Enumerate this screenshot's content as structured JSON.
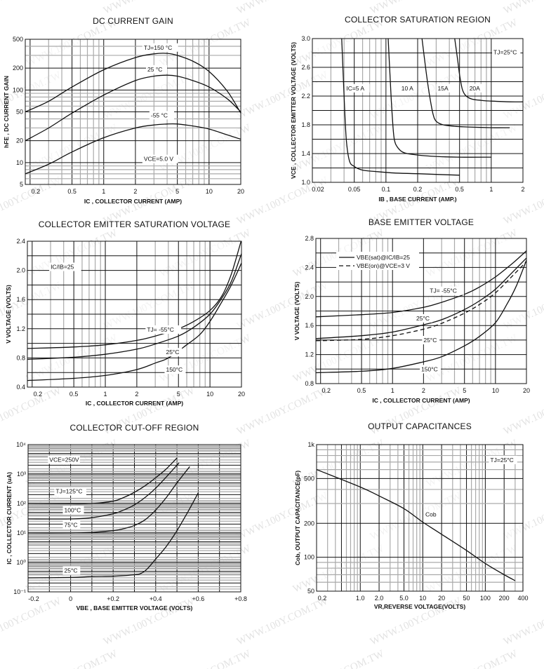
{
  "watermark": "WWW.100Y.COM.TW",
  "chart_data": [
    {
      "id": "dc-current-gain",
      "type": "line",
      "title": "DC CURRENT GAIN",
      "xlabel": "IC , COLLECTOR CURRENT (AMP)",
      "ylabel": "hFE , DC CURRENT GAIN",
      "xscale": "log",
      "yscale": "log",
      "xlim": [
        0.18,
        20
      ],
      "ylim": [
        5,
        500
      ],
      "xticks": [
        {
          "v": 0.2,
          "label": "0.2"
        },
        {
          "v": 0.5,
          "label": "0.5"
        },
        {
          "v": 1,
          "label": "1"
        },
        {
          "v": 2,
          "label": "2"
        },
        {
          "v": 5,
          "label": "5"
        },
        {
          "v": 10,
          "label": "10"
        },
        {
          "v": 20,
          "label": "20"
        }
      ],
      "yticks": [
        {
          "v": 5,
          "label": "5"
        },
        {
          "v": 10,
          "label": "10"
        },
        {
          "v": 20,
          "label": "20"
        },
        {
          "v": 50,
          "label": "50"
        },
        {
          "v": 100,
          "label": "100"
        },
        {
          "v": 200,
          "label": "200"
        },
        {
          "v": 500,
          "label": "500"
        }
      ],
      "grid": true,
      "series": [
        {
          "name": "TJ=150 °C",
          "x": [
            0.18,
            0.3,
            0.5,
            1,
            2,
            3,
            4,
            5,
            7,
            10,
            15,
            20
          ],
          "y": [
            50,
            70,
            110,
            190,
            280,
            315,
            320,
            300,
            250,
            180,
            95,
            48
          ]
        },
        {
          "name": "25 °C",
          "x": [
            0.18,
            0.3,
            0.5,
            1,
            2,
            3,
            4,
            5,
            7,
            10,
            15,
            20
          ],
          "y": [
            20,
            30,
            48,
            85,
            135,
            155,
            160,
            155,
            135,
            110,
            75,
            50
          ]
        },
        {
          "name": "-55 °C",
          "x": [
            0.18,
            0.3,
            0.5,
            1,
            2,
            3,
            4,
            5,
            7,
            10,
            15,
            20
          ],
          "y": [
            7,
            9.5,
            14,
            22,
            30,
            33,
            34,
            34,
            32,
            29,
            24,
            21
          ]
        }
      ],
      "annotations": [
        {
          "text": "TJ=150 °C",
          "x": 2.4,
          "y": 360
        },
        {
          "text": "25 °C",
          "x": 2.6,
          "y": 180
        },
        {
          "text": "-55 °C",
          "x": 2.8,
          "y": 42
        },
        {
          "text": "VCE=5.0 V",
          "x": 2.4,
          "y": 10.5
        }
      ]
    },
    {
      "id": "collector-saturation-region",
      "type": "line",
      "title": "COLLECTOR SATURATION REGION",
      "xlabel": "IB , BASE CURRENT (AMP.)",
      "ylabel": "VCE , COLLECTOR EMITTER VOLTAGE (VOLTS)",
      "xscale": "log",
      "yscale": "linear",
      "xlim": [
        0.02,
        2
      ],
      "ylim": [
        1.0,
        3.0
      ],
      "xticks": [
        {
          "v": 0.02,
          "label": "0.02"
        },
        {
          "v": 0.05,
          "label": "0.05"
        },
        {
          "v": 0.1,
          "label": "0.1"
        },
        {
          "v": 0.2,
          "label": "0.2"
        },
        {
          "v": 0.5,
          "label": "0.5"
        },
        {
          "v": 1,
          "label": "1"
        },
        {
          "v": 2,
          "label": "2"
        }
      ],
      "yticks": [
        {
          "v": 1.0,
          "label": "1.0"
        },
        {
          "v": 1.4,
          "label": "1.4"
        },
        {
          "v": 1.8,
          "label": "1.8"
        },
        {
          "v": 2.2,
          "label": "2.2"
        },
        {
          "v": 2.6,
          "label": "2.6"
        },
        {
          "v": 3.0,
          "label": "3.0"
        }
      ],
      "grid": true,
      "series": [
        {
          "name": "IC=5 A",
          "x": [
            0.038,
            0.04,
            0.042,
            0.045,
            0.05,
            0.06,
            0.08,
            0.12,
            0.2,
            0.3,
            0.5
          ],
          "y": [
            3.0,
            2.2,
            1.6,
            1.3,
            1.22,
            1.17,
            1.15,
            1.13,
            1.12,
            1.11,
            1.1
          ]
        },
        {
          "name": "10 A",
          "x": [
            0.105,
            0.11,
            0.115,
            0.12,
            0.13,
            0.15,
            0.2,
            0.3,
            0.5,
            1.0
          ],
          "y": [
            3.0,
            2.4,
            1.9,
            1.6,
            1.48,
            1.41,
            1.38,
            1.36,
            1.35,
            1.35
          ]
        },
        {
          "name": "15A",
          "x": [
            0.22,
            0.24,
            0.26,
            0.28,
            0.3,
            0.35,
            0.45,
            0.6,
            1.0,
            1.5
          ],
          "y": [
            3.0,
            2.55,
            2.2,
            1.95,
            1.85,
            1.8,
            1.78,
            1.77,
            1.76,
            1.76
          ]
        },
        {
          "name": "20A",
          "x": [
            0.45,
            0.48,
            0.5,
            0.53,
            0.57,
            0.65,
            0.8,
            1.0,
            1.5,
            2.0
          ],
          "y": [
            3.0,
            2.7,
            2.5,
            2.3,
            2.21,
            2.16,
            2.14,
            2.13,
            2.12,
            2.12
          ]
        }
      ],
      "annotations": [
        {
          "text": "IC=5 A",
          "x": 0.042,
          "y": 2.28
        },
        {
          "text": "10 A",
          "x": 0.14,
          "y": 2.28
        },
        {
          "text": "15A",
          "x": 0.31,
          "y": 2.28
        },
        {
          "text": "20A",
          "x": 0.62,
          "y": 2.28
        },
        {
          "text": "TJ=25°C",
          "x": 1.05,
          "y": 2.78
        }
      ]
    },
    {
      "id": "collector-emitter-saturation-voltage",
      "type": "line",
      "title": "COLLECTOR EMITTER SATURATION VOLTAGE",
      "xlabel": "IC , COLLECTOR CURRENT (AMP)",
      "ylabel": "V VOLTAGE (VOLTS)",
      "xscale": "log",
      "yscale": "linear",
      "xlim": [
        0.18,
        20
      ],
      "ylim": [
        0.4,
        2.4
      ],
      "xticks": [
        {
          "v": 0.2,
          "label": "0.2"
        },
        {
          "v": 0.5,
          "label": "0.5"
        },
        {
          "v": 1,
          "label": "1"
        },
        {
          "v": 2,
          "label": "2"
        },
        {
          "v": 5,
          "label": "5"
        },
        {
          "v": 10,
          "label": "10"
        },
        {
          "v": 20,
          "label": "20"
        }
      ],
      "yticks": [
        {
          "v": 0.4,
          "label": "0.4"
        },
        {
          "v": 0.8,
          "label": "0.8"
        },
        {
          "v": 1.2,
          "label": "1.2"
        },
        {
          "v": 1.6,
          "label": "1.6"
        },
        {
          "v": 2.0,
          "label": "2.0"
        },
        {
          "v": 2.4,
          "label": "2.4"
        }
      ],
      "grid": true,
      "series": [
        {
          "name": "TJ= -55°C",
          "x": [
            0.18,
            0.5,
            1,
            2,
            3,
            5,
            7,
            10,
            13,
            16,
            20
          ],
          "y": [
            0.93,
            0.95,
            0.98,
            1.04,
            1.1,
            1.2,
            1.3,
            1.45,
            1.65,
            1.95,
            2.42
          ]
        },
        {
          "name": "25°C",
          "x": [
            0.18,
            0.5,
            1,
            2,
            3,
            5,
            7,
            10,
            13,
            16,
            20
          ],
          "y": [
            0.78,
            0.81,
            0.85,
            0.92,
            0.99,
            1.1,
            1.22,
            1.4,
            1.62,
            1.85,
            2.23
          ]
        },
        {
          "name": "150°C",
          "x": [
            0.18,
            0.5,
            1,
            2,
            3,
            4,
            6,
            8,
            10,
            13,
            16,
            20
          ],
          "y": [
            0.49,
            0.52,
            0.56,
            0.64,
            0.73,
            0.8,
            0.98,
            1.12,
            1.3,
            1.57,
            1.8,
            2.1
          ]
        }
      ],
      "annotations": [
        {
          "text": "IC/IB=25",
          "x": 0.3,
          "y": 2.02
        },
        {
          "text": "TJ= -55°C",
          "x": 2.5,
          "y": 1.16
        },
        {
          "text": "25°C",
          "x": 3.8,
          "y": 0.85
        },
        {
          "text": "150°C",
          "x": 3.8,
          "y": 0.61
        }
      ]
    },
    {
      "id": "base-emitter-voltage",
      "type": "line",
      "title": "BASE EMITTER VOLTAGE",
      "xlabel": "IC , COLLECTOR CURRENT (AMP)",
      "ylabel": "V VOLTAGE (VOLTS)",
      "xscale": "log",
      "yscale": "linear",
      "xlim": [
        0.18,
        20
      ],
      "ylim": [
        0.8,
        2.8
      ],
      "xticks": [
        {
          "v": 0.2,
          "label": "0.2"
        },
        {
          "v": 0.5,
          "label": "0.5"
        },
        {
          "v": 1,
          "label": "1"
        },
        {
          "v": 2,
          "label": "2"
        },
        {
          "v": 5,
          "label": "5"
        },
        {
          "v": 10,
          "label": "10"
        },
        {
          "v": 20,
          "label": "20"
        }
      ],
      "yticks": [
        {
          "v": 0.8,
          "label": "0.8"
        },
        {
          "v": 1.2,
          "label": "1.2"
        },
        {
          "v": 1.6,
          "label": "1.6"
        },
        {
          "v": 2.0,
          "label": "2.0"
        },
        {
          "v": 2.4,
          "label": "2.4"
        },
        {
          "v": 2.8,
          "label": "2.8"
        }
      ],
      "grid": true,
      "legend": [
        {
          "label": "VBE(sat)@IC/IB=25",
          "style": "solid"
        },
        {
          "label": "VBE(on)@VCE=3 V",
          "style": "dashed"
        }
      ],
      "legend_position": "top-left",
      "series": [
        {
          "name": "TJ= -55°C VBE(sat)",
          "style": "solid",
          "x": [
            0.18,
            0.5,
            1,
            2,
            3,
            5,
            7,
            10,
            15,
            20
          ],
          "y": [
            1.72,
            1.75,
            1.78,
            1.85,
            1.92,
            2.03,
            2.13,
            2.27,
            2.47,
            2.63
          ]
        },
        {
          "name": "25°C VBE(sat)",
          "style": "solid",
          "x": [
            0.18,
            0.5,
            1,
            2,
            3,
            5,
            7,
            10,
            15,
            20
          ],
          "y": [
            1.42,
            1.46,
            1.51,
            1.61,
            1.68,
            1.82,
            1.94,
            2.1,
            2.35,
            2.53
          ]
        },
        {
          "name": "25°C VBE(on)",
          "style": "dashed",
          "x": [
            0.18,
            0.5,
            1,
            2,
            3,
            5,
            7,
            10,
            15,
            20
          ],
          "y": [
            1.39,
            1.41,
            1.46,
            1.55,
            1.63,
            1.77,
            1.89,
            2.05,
            2.3,
            2.48
          ]
        },
        {
          "name": "150°C VBE(sat)",
          "style": "solid",
          "x": [
            0.18,
            0.5,
            1,
            2,
            3,
            5,
            7,
            10,
            13,
            16,
            20
          ],
          "y": [
            0.95,
            0.97,
            1.01,
            1.1,
            1.17,
            1.32,
            1.45,
            1.64,
            1.9,
            2.15,
            2.5
          ]
        }
      ],
      "annotations": [
        {
          "text": "TJ= -55°C",
          "x": 2.3,
          "y": 2.05
        },
        {
          "text": "25°C",
          "x": 1.7,
          "y": 1.67
        },
        {
          "text": "25°C",
          "x": 2.0,
          "y": 1.37
        },
        {
          "text": "150°C",
          "x": 1.9,
          "y": 0.97
        }
      ]
    },
    {
      "id": "collector-cut-off-region",
      "type": "line",
      "title": "COLLECTOR CUT-OFF REGION",
      "xlabel": "VBE , BASE EMITTER VOLTAGE (VOLTS)",
      "ylabel": "IC , COLLECTOR CURRENT (uA)",
      "xscale": "linear",
      "yscale": "log",
      "xlim": [
        -0.2,
        0.8
      ],
      "ylim": [
        0.1,
        10000
      ],
      "xticks": [
        {
          "v": -0.2,
          "label": "-0.2"
        },
        {
          "v": 0,
          "label": "0"
        },
        {
          "v": 0.2,
          "label": "+0.2"
        },
        {
          "v": 0.4,
          "label": "+0.4"
        },
        {
          "v": 0.6,
          "label": "+0.6"
        },
        {
          "v": 0.8,
          "label": "+0.8"
        }
      ],
      "yticks": [
        {
          "v": 0.1,
          "label": "10⁻¹"
        },
        {
          "v": 1,
          "label": "10⁰"
        },
        {
          "v": 10,
          "label": "10¹"
        },
        {
          "v": 100,
          "label": "10²"
        },
        {
          "v": 1000,
          "label": "10³"
        },
        {
          "v": 10000,
          "label": "10⁴"
        }
      ],
      "grid": true,
      "series": [
        {
          "name": "TJ=125°C",
          "x": [
            -0.2,
            0,
            0.1,
            0.2,
            0.25,
            0.3,
            0.35,
            0.4,
            0.45,
            0.5
          ],
          "y": [
            100,
            98,
            100,
            120,
            160,
            240,
            400,
            750,
            1500,
            3500
          ]
        },
        {
          "name": "100°C",
          "x": [
            -0.2,
            0,
            0.1,
            0.2,
            0.25,
            0.3,
            0.35,
            0.4,
            0.45,
            0.51
          ],
          "y": [
            30,
            30,
            33,
            45,
            60,
            90,
            160,
            330,
            800,
            2400
          ]
        },
        {
          "name": "75°C",
          "x": [
            -0.2,
            0,
            0.1,
            0.2,
            0.25,
            0.3,
            0.35,
            0.4,
            0.45,
            0.5,
            0.56
          ],
          "y": [
            10,
            10,
            10.5,
            12,
            14,
            18,
            28,
            60,
            160,
            500,
            1800
          ]
        },
        {
          "name": "25°C",
          "x": [
            -0.2,
            0,
            0.1,
            0.2,
            0.3,
            0.33,
            0.36,
            0.4,
            0.45,
            0.5,
            0.55,
            0.6
          ],
          "y": [
            0.3,
            0.31,
            0.33,
            0.34,
            0.38,
            0.42,
            0.6,
            1.3,
            3.5,
            12,
            50,
            230
          ]
        }
      ],
      "annotations": [
        {
          "text": "VCE=250V",
          "x": -0.1,
          "y": 2600
        },
        {
          "text": "TJ=125°C",
          "x": -0.07,
          "y": 220
        },
        {
          "text": "100°C",
          "x": -0.03,
          "y": 50
        },
        {
          "text": "75°C",
          "x": -0.03,
          "y": 16
        },
        {
          "text": "25°C",
          "x": -0.03,
          "y": 0.45
        }
      ]
    },
    {
      "id": "output-capacitances",
      "type": "line",
      "title": "OUTPUT CAPACITANCES",
      "xlabel": "VR,REVERSE VOLTAGE(VOLTS)",
      "ylabel": "Cob, OUTPUT CAPACITANCE(pF)",
      "xscale": "log",
      "yscale": "log",
      "xlim": [
        0.2,
        400
      ],
      "ylim": [
        50,
        1000
      ],
      "xticks": [
        {
          "v": 0.2,
          "label": "0.2"
        },
        {
          "v": 1.0,
          "label": "1.0"
        },
        {
          "v": 2.0,
          "label": "2.0"
        },
        {
          "v": 5.0,
          "label": "5.0"
        },
        {
          "v": 10,
          "label": "10"
        },
        {
          "v": 20,
          "label": "20"
        },
        {
          "v": 50,
          "label": "50"
        },
        {
          "v": 100,
          "label": "100"
        },
        {
          "v": 200,
          "label": "200"
        },
        {
          "v": 400,
          "label": "400"
        }
      ],
      "yticks": [
        {
          "v": 50,
          "label": "50"
        },
        {
          "v": 100,
          "label": "100"
        },
        {
          "v": 200,
          "label": "200"
        },
        {
          "v": 500,
          "label": "500"
        },
        {
          "v": 1000,
          "label": "1k"
        }
      ],
      "grid": true,
      "series": [
        {
          "name": "Cob",
          "x": [
            0.2,
            1,
            2,
            5,
            10,
            20,
            50,
            100,
            200,
            300
          ],
          "y": [
            600,
            420,
            350,
            270,
            205,
            160,
            115,
            88,
            70,
            62
          ]
        }
      ],
      "annotations": [
        {
          "text": "Cob",
          "x": 11,
          "y": 230
        },
        {
          "text": "TJ=25°C",
          "x": 120,
          "y": 700
        }
      ]
    }
  ]
}
